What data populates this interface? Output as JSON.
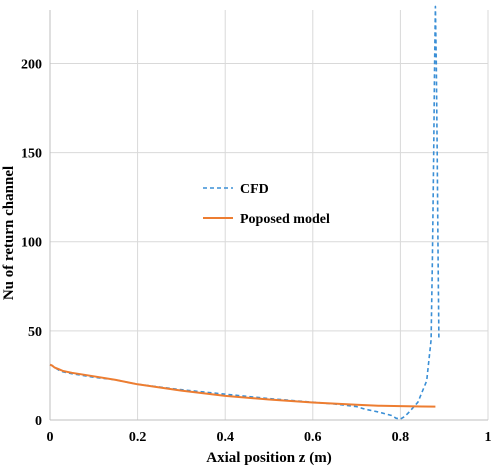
{
  "chart_data": {
    "type": "line",
    "xlabel": "Axial position z (m)",
    "ylabel": "Nu of return channel",
    "xlim": [
      0,
      1
    ],
    "ylim": [
      0,
      230
    ],
    "x_ticks": [
      "0",
      "0.2",
      "0.4",
      "0.6",
      "0.8",
      "1"
    ],
    "y_ticks": [
      "0",
      "50",
      "100",
      "150",
      "200"
    ],
    "grid": true,
    "legend_position": "center",
    "colors": {
      "CFD": "#3a8fd6",
      "Poposed model": "#ed7d31"
    },
    "series": [
      {
        "name": "CFD",
        "style": "dashed",
        "x": [
          0.0,
          0.005,
          0.01,
          0.02,
          0.03,
          0.05,
          0.1,
          0.15,
          0.2,
          0.3,
          0.4,
          0.5,
          0.6,
          0.65,
          0.7,
          0.72,
          0.75,
          0.78,
          0.79,
          0.8,
          0.81,
          0.82,
          0.84,
          0.86,
          0.87,
          0.873,
          0.876,
          0.878,
          0.88,
          0.882,
          0.884,
          0.886,
          0.888
        ],
        "y": [
          31,
          30.5,
          29.5,
          28,
          27,
          26,
          24,
          22.5,
          20,
          17,
          14.5,
          12,
          10,
          9,
          7.5,
          6,
          4.5,
          2.5,
          1,
          0.5,
          2,
          4.5,
          10,
          22,
          45,
          90,
          150,
          200,
          232,
          200,
          150,
          90,
          45
        ]
      },
      {
        "name": "Poposed model",
        "style": "solid",
        "x": [
          0.0,
          0.005,
          0.01,
          0.02,
          0.03,
          0.05,
          0.1,
          0.15,
          0.2,
          0.3,
          0.4,
          0.5,
          0.6,
          0.7,
          0.75,
          0.8,
          0.85,
          0.88
        ],
        "y": [
          31,
          30.5,
          29.5,
          28.5,
          27.5,
          26.5,
          24.5,
          22.5,
          20,
          16.5,
          13.5,
          11.5,
          9.8,
          8.5,
          8,
          7.8,
          7.6,
          7.5
        ]
      }
    ]
  }
}
